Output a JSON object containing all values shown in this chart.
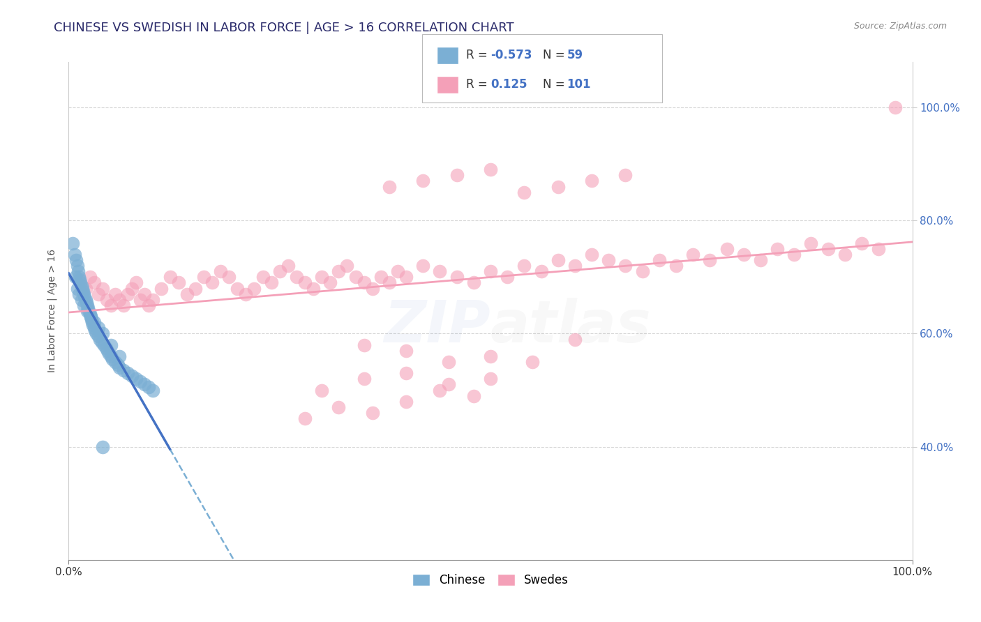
{
  "title": "CHINESE VS SWEDISH IN LABOR FORCE | AGE > 16 CORRELATION CHART",
  "source_text": "Source: ZipAtlas.com",
  "ylabel": "In Labor Force | Age > 16",
  "xlim": [
    0.0,
    1.0
  ],
  "ylim": [
    0.2,
    1.08
  ],
  "xticks_bottom": [
    0.0,
    1.0
  ],
  "xtick_labels_bottom": [
    "0.0%",
    "100.0%"
  ],
  "yticks_right": [
    0.4,
    0.6,
    0.8,
    1.0
  ],
  "ytick_labels_right": [
    "40.0%",
    "60.0%",
    "80.0%",
    "100.0%"
  ],
  "title_color": "#3a3a8c",
  "title_fontsize": 13,
  "legend_R1": "-0.573",
  "legend_N1": "59",
  "legend_R2": "0.125",
  "legend_N2": "101",
  "chinese_color": "#7bafd4",
  "swedes_color": "#f4a0b8",
  "chinese_line_color": "#4472c4",
  "swedes_line_color": "#f4a0b8",
  "grid_color": "#cccccc",
  "background_color": "#ffffff",
  "watermark_color": "#4472c4",
  "chinese_points_x": [
    0.005,
    0.007,
    0.009,
    0.01,
    0.011,
    0.012,
    0.013,
    0.014,
    0.015,
    0.016,
    0.017,
    0.018,
    0.019,
    0.02,
    0.021,
    0.022,
    0.023,
    0.024,
    0.025,
    0.026,
    0.027,
    0.028,
    0.029,
    0.03,
    0.031,
    0.033,
    0.035,
    0.037,
    0.039,
    0.042,
    0.044,
    0.046,
    0.048,
    0.05,
    0.052,
    0.055,
    0.058,
    0.06,
    0.065,
    0.07,
    0.075,
    0.08,
    0.085,
    0.09,
    0.095,
    0.1,
    0.008,
    0.01,
    0.012,
    0.015,
    0.018,
    0.022,
    0.026,
    0.03,
    0.035,
    0.04,
    0.05,
    0.06,
    0.04
  ],
  "chinese_points_y": [
    0.76,
    0.74,
    0.73,
    0.72,
    0.71,
    0.7,
    0.695,
    0.69,
    0.685,
    0.68,
    0.675,
    0.67,
    0.665,
    0.66,
    0.655,
    0.65,
    0.645,
    0.64,
    0.635,
    0.63,
    0.625,
    0.62,
    0.615,
    0.61,
    0.605,
    0.6,
    0.595,
    0.59,
    0.585,
    0.58,
    0.575,
    0.57,
    0.565,
    0.56,
    0.555,
    0.55,
    0.545,
    0.54,
    0.535,
    0.53,
    0.525,
    0.52,
    0.515,
    0.51,
    0.505,
    0.5,
    0.7,
    0.68,
    0.67,
    0.66,
    0.65,
    0.64,
    0.63,
    0.62,
    0.61,
    0.6,
    0.58,
    0.56,
    0.4
  ],
  "swedes_points_x": [
    0.02,
    0.025,
    0.03,
    0.035,
    0.04,
    0.045,
    0.05,
    0.055,
    0.06,
    0.065,
    0.07,
    0.075,
    0.08,
    0.085,
    0.09,
    0.095,
    0.1,
    0.11,
    0.12,
    0.13,
    0.14,
    0.15,
    0.16,
    0.17,
    0.18,
    0.19,
    0.2,
    0.21,
    0.22,
    0.23,
    0.24,
    0.25,
    0.26,
    0.27,
    0.28,
    0.29,
    0.3,
    0.31,
    0.32,
    0.33,
    0.34,
    0.35,
    0.36,
    0.37,
    0.38,
    0.39,
    0.4,
    0.42,
    0.44,
    0.46,
    0.48,
    0.5,
    0.52,
    0.54,
    0.56,
    0.58,
    0.6,
    0.62,
    0.64,
    0.66,
    0.68,
    0.7,
    0.72,
    0.74,
    0.76,
    0.78,
    0.8,
    0.82,
    0.84,
    0.86,
    0.88,
    0.9,
    0.92,
    0.94,
    0.96,
    0.98,
    0.35,
    0.4,
    0.45,
    0.5,
    0.55,
    0.6,
    0.3,
    0.35,
    0.4,
    0.45,
    0.5,
    0.28,
    0.32,
    0.36,
    0.4,
    0.44,
    0.48,
    0.38,
    0.42,
    0.46,
    0.5,
    0.54,
    0.58,
    0.62,
    0.66
  ],
  "swedes_points_y": [
    0.68,
    0.7,
    0.69,
    0.67,
    0.68,
    0.66,
    0.65,
    0.67,
    0.66,
    0.65,
    0.67,
    0.68,
    0.69,
    0.66,
    0.67,
    0.65,
    0.66,
    0.68,
    0.7,
    0.69,
    0.67,
    0.68,
    0.7,
    0.69,
    0.71,
    0.7,
    0.68,
    0.67,
    0.68,
    0.7,
    0.69,
    0.71,
    0.72,
    0.7,
    0.69,
    0.68,
    0.7,
    0.69,
    0.71,
    0.72,
    0.7,
    0.69,
    0.68,
    0.7,
    0.69,
    0.71,
    0.7,
    0.72,
    0.71,
    0.7,
    0.69,
    0.71,
    0.7,
    0.72,
    0.71,
    0.73,
    0.72,
    0.74,
    0.73,
    0.72,
    0.71,
    0.73,
    0.72,
    0.74,
    0.73,
    0.75,
    0.74,
    0.73,
    0.75,
    0.74,
    0.76,
    0.75,
    0.74,
    0.76,
    0.75,
    1.0,
    0.58,
    0.57,
    0.55,
    0.56,
    0.55,
    0.59,
    0.5,
    0.52,
    0.53,
    0.51,
    0.52,
    0.45,
    0.47,
    0.46,
    0.48,
    0.5,
    0.49,
    0.86,
    0.87,
    0.88,
    0.89,
    0.85,
    0.86,
    0.87,
    0.88
  ]
}
